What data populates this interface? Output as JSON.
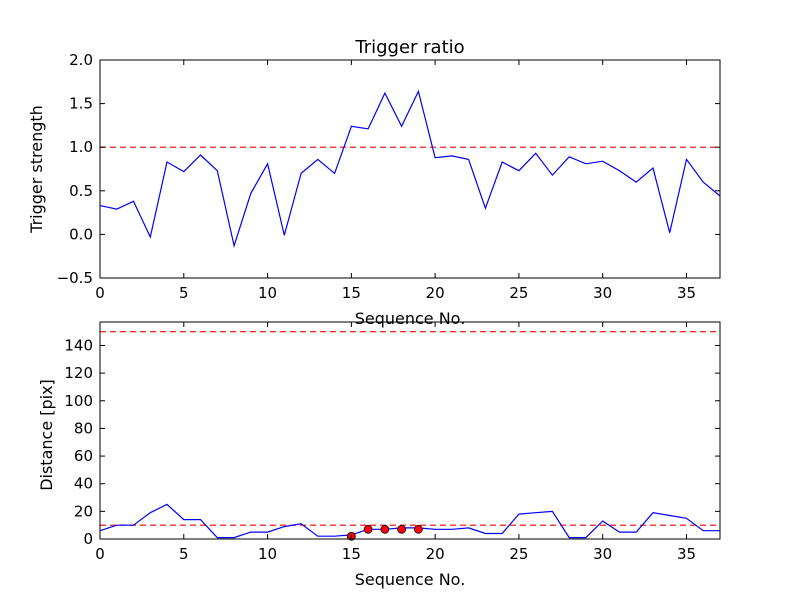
{
  "chart_data": [
    {
      "type": "line",
      "title": "Trigger ratio",
      "xlabel": "Sequence No.",
      "ylabel": "Trigger strength",
      "xlim": [
        0,
        37
      ],
      "ylim": [
        -0.5,
        2.0
      ],
      "xticks": [
        0,
        5,
        10,
        15,
        20,
        25,
        30,
        35
      ],
      "xtick_labels": [
        "0",
        "5",
        "10",
        "15",
        "20",
        "25",
        "30",
        "35"
      ],
      "yticks": [
        -0.5,
        0.0,
        0.5,
        1.0,
        1.5,
        2.0
      ],
      "ytick_labels": [
        "−0.5",
        "0.0",
        "0.5",
        "1.0",
        "1.5",
        "2.0"
      ],
      "grid": false,
      "series": [
        {
          "x": [
            0,
            1,
            2,
            3,
            4,
            5,
            6,
            7,
            8,
            9,
            10,
            11,
            12,
            13,
            14,
            15,
            16,
            17,
            18,
            19,
            20,
            21,
            22,
            23,
            24,
            25,
            26,
            27,
            28,
            29,
            30,
            31,
            32,
            33,
            34,
            35,
            36,
            37
          ],
          "values": [
            0.33,
            0.29,
            0.38,
            -0.03,
            0.83,
            0.72,
            0.91,
            0.73,
            -0.13,
            0.47,
            0.81,
            -0.01,
            0.7,
            0.86,
            0.7,
            1.24,
            1.21,
            1.62,
            1.24,
            1.64,
            0.88,
            0.9,
            0.86,
            0.3,
            0.83,
            0.73,
            0.93,
            0.68,
            0.89,
            0.81,
            0.84,
            0.73,
            0.6,
            0.76,
            0.02,
            0.86,
            0.6,
            0.44
          ],
          "color": "#0000ff",
          "style": "solid"
        }
      ],
      "reference_lines": [
        {
          "y": 1.0,
          "color": "#ff0000",
          "style": "dashed"
        }
      ]
    },
    {
      "type": "line",
      "title": "",
      "xlabel": "Sequence No.",
      "ylabel": "Distance [pix]",
      "xlim": [
        0,
        37
      ],
      "ylim": [
        0,
        157
      ],
      "xticks": [
        0,
        5,
        10,
        15,
        20,
        25,
        30,
        35
      ],
      "xtick_labels": [
        "0",
        "5",
        "10",
        "15",
        "20",
        "25",
        "30",
        "35"
      ],
      "yticks": [
        0,
        20,
        40,
        60,
        80,
        100,
        120,
        140
      ],
      "ytick_labels": [
        "0",
        "20",
        "40",
        "60",
        "80",
        "100",
        "120",
        "140"
      ],
      "grid": false,
      "series": [
        {
          "x": [
            0,
            1,
            2,
            3,
            4,
            5,
            6,
            7,
            8,
            9,
            10,
            11,
            12,
            13,
            14,
            15,
            16,
            17,
            18,
            19,
            20,
            21,
            22,
            23,
            24,
            25,
            26,
            27,
            28,
            29,
            30,
            31,
            32,
            33,
            34,
            35,
            36,
            37
          ],
          "values": [
            6,
            10,
            10,
            19,
            25,
            14,
            14,
            1,
            1,
            5,
            5,
            9,
            11,
            2,
            2,
            3,
            7,
            7,
            8,
            8,
            7,
            7,
            8,
            4,
            4,
            18,
            19,
            20,
            1,
            1,
            13,
            5,
            5,
            19,
            17,
            15,
            6,
            6
          ],
          "color": "#0000ff",
          "style": "solid"
        },
        {
          "x": [
            15,
            16,
            17,
            18,
            19
          ],
          "values": [
            2,
            7,
            7,
            7,
            7
          ],
          "color": "#ff0000",
          "style": "markers"
        }
      ],
      "reference_lines": [
        {
          "y": 10,
          "color": "#ff0000",
          "style": "dashed"
        },
        {
          "y": 150,
          "color": "#ff0000",
          "style": "dashed"
        }
      ]
    }
  ]
}
